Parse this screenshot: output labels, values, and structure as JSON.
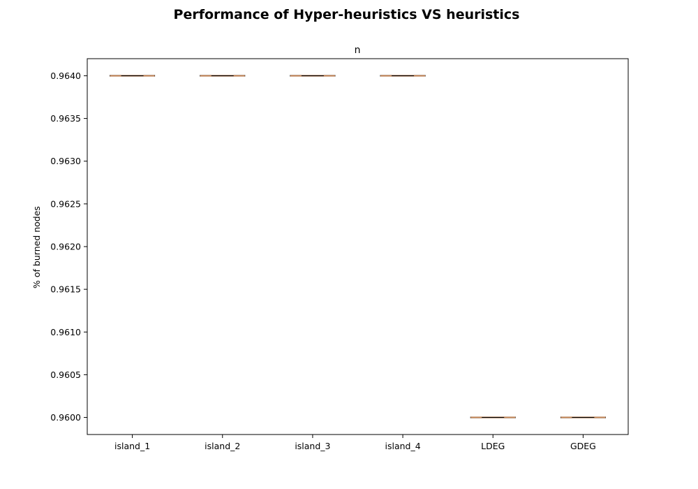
{
  "chart_data": {
    "type": "box",
    "suptitle": "Performance of Hyper-heuristics VS heuristics",
    "title": "n",
    "xlabel": "",
    "ylabel": "% of burned nodes",
    "categories": [
      "island_1",
      "island_2",
      "island_3",
      "island_4",
      "LDEG",
      "GDEG"
    ],
    "values": [
      0.964,
      0.964,
      0.964,
      0.964,
      0.96,
      0.96
    ],
    "ylim": [
      0.9598,
      0.9642
    ],
    "yticks": [
      "0.9600",
      "0.9605",
      "0.9610",
      "0.9615",
      "0.9620",
      "0.9625",
      "0.9630",
      "0.9635",
      "0.9640"
    ],
    "grid": false,
    "colors": {
      "box": "#000000",
      "median": "#c8895a",
      "axes": "#000000"
    }
  }
}
